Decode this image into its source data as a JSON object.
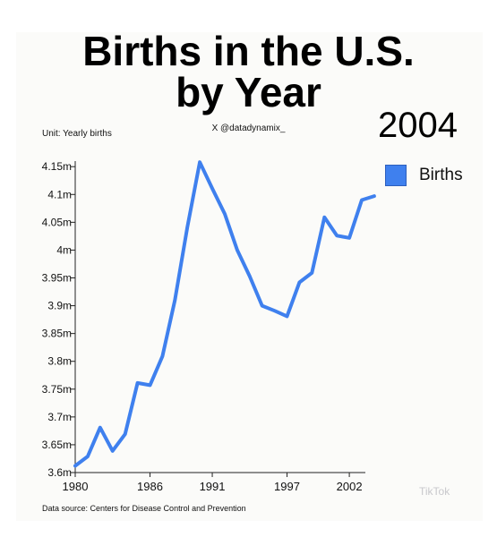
{
  "title_line1": "Births in the U.S.",
  "title_line2": "by Year",
  "credit": "X @datadynamix_",
  "current_year": "2004",
  "unit_label": "Unit: Yearly births",
  "source": "Data source: Centers for Disease Control and Prevention",
  "legend_label": "Births",
  "watermark": "TikTok",
  "colors": {
    "line": "#3f80ee",
    "background": "#fbfbf9"
  },
  "chart_data": {
    "type": "line",
    "title": "Births in the U.S. by Year",
    "ylabel": "Unit: Yearly births",
    "x_ticks": [
      1980,
      1986,
      1991,
      1997,
      2002
    ],
    "y_ticks": [
      {
        "value": 3.6,
        "label": "3.6m"
      },
      {
        "value": 3.65,
        "label": "3.65m"
      },
      {
        "value": 3.7,
        "label": "3.7m"
      },
      {
        "value": 3.75,
        "label": "3.75m"
      },
      {
        "value": 3.8,
        "label": "3.8m"
      },
      {
        "value": 3.85,
        "label": "3.85m"
      },
      {
        "value": 3.9,
        "label": "3.9m"
      },
      {
        "value": 3.95,
        "label": "3.95m"
      },
      {
        "value": 4.0,
        "label": "4m"
      },
      {
        "value": 4.05,
        "label": "4.05m"
      },
      {
        "value": 4.1,
        "label": "4.1m"
      },
      {
        "value": 4.15,
        "label": "4.15m"
      }
    ],
    "xlim": [
      1980,
      2003
    ],
    "ylim": [
      3.6,
      4.16
    ],
    "series": [
      {
        "name": "Births",
        "x": [
          1980,
          1981,
          1982,
          1983,
          1984,
          1985,
          1986,
          1987,
          1988,
          1989,
          1990,
          1991,
          1992,
          1993,
          1994,
          1995,
          1996,
          1997,
          1998,
          1999,
          2000,
          2001,
          2002,
          2003,
          2004
        ],
        "values": [
          3.612,
          3.629,
          3.681,
          3.639,
          3.669,
          3.761,
          3.757,
          3.809,
          3.91,
          4.041,
          4.158,
          4.111,
          4.065,
          4.0,
          3.953,
          3.9,
          3.891,
          3.881,
          3.942,
          3.959,
          4.059,
          4.026,
          4.022,
          4.09,
          4.097
        ]
      }
    ],
    "grid": false,
    "legend": "top-right"
  }
}
